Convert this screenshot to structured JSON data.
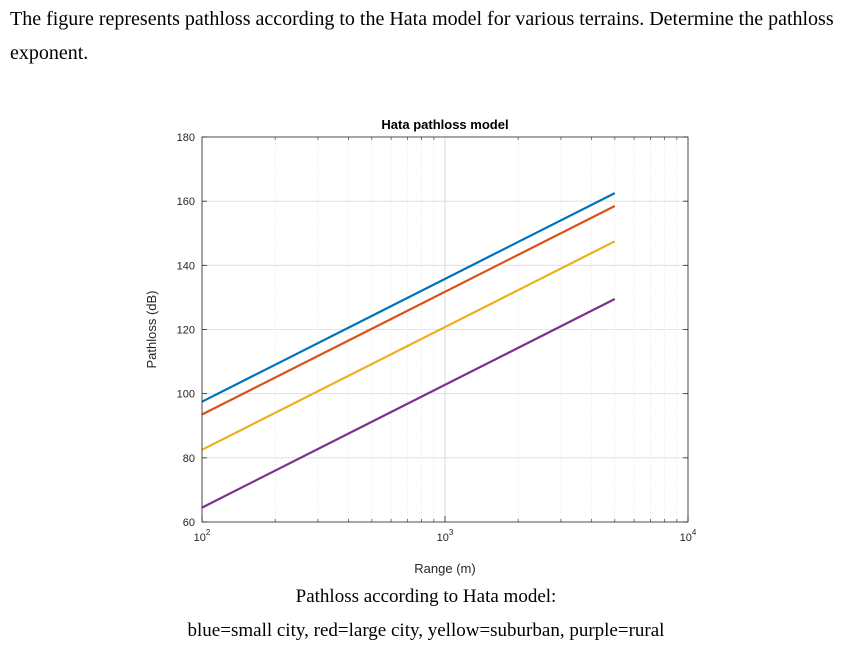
{
  "question": "The figure represents pathloss according to the Hata model for various terrains. Determine the pathloss exponent.",
  "caption_line1": "Pathloss according to Hata model:",
  "caption_line2": "blue=small city, red=large city, yellow=suburban, purple=rural",
  "chart_data": {
    "type": "line",
    "title": "Hata pathloss model",
    "xlabel": "Range (m)",
    "ylabel": "Pathloss (dB)",
    "xscale": "log",
    "xlim": [
      100,
      10000
    ],
    "ylim": [
      60,
      180
    ],
    "x_ticks": [
      {
        "value": 100,
        "base": "10",
        "exp": "2"
      },
      {
        "value": 1000,
        "base": "10",
        "exp": "3"
      },
      {
        "value": 10000,
        "base": "10",
        "exp": "4"
      }
    ],
    "y_ticks": [
      60,
      80,
      100,
      120,
      140,
      160,
      180
    ],
    "grid": true,
    "series": [
      {
        "color": "#0072BD",
        "x": [
          100,
          5000
        ],
        "y": [
          97.5,
          162.5
        ]
      },
      {
        "color": "#D95319",
        "x": [
          100,
          5000
        ],
        "y": [
          93.5,
          158.5
        ]
      },
      {
        "color": "#EDB120",
        "x": [
          100,
          5000
        ],
        "y": [
          82.5,
          147.5
        ]
      },
      {
        "color": "#7E2F8E",
        "x": [
          100,
          5000
        ],
        "y": [
          64.5,
          129.5
        ]
      }
    ]
  }
}
